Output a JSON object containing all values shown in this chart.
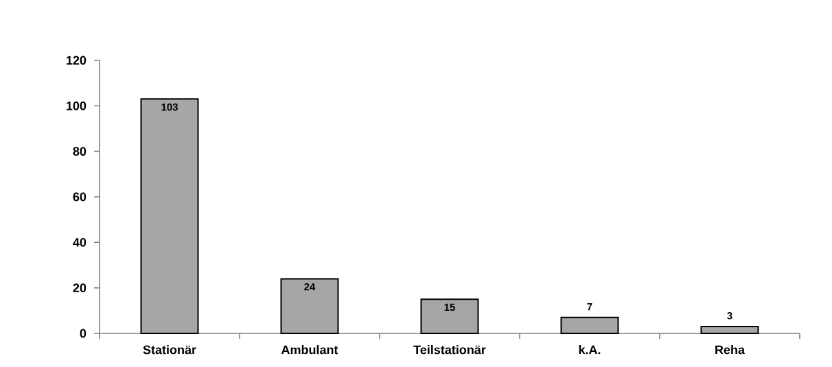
{
  "chart_data": {
    "type": "bar",
    "categories": [
      "Stationär",
      "Ambulant",
      "Teilstationär",
      "k.A.",
      "Reha"
    ],
    "values": [
      103,
      24,
      15,
      7,
      3
    ],
    "color": "#a6a6a6",
    "ylim": [
      0,
      120
    ],
    "yticks": [
      0,
      20,
      40,
      60,
      80,
      100,
      120
    ],
    "data_labels": true,
    "grid": false
  }
}
